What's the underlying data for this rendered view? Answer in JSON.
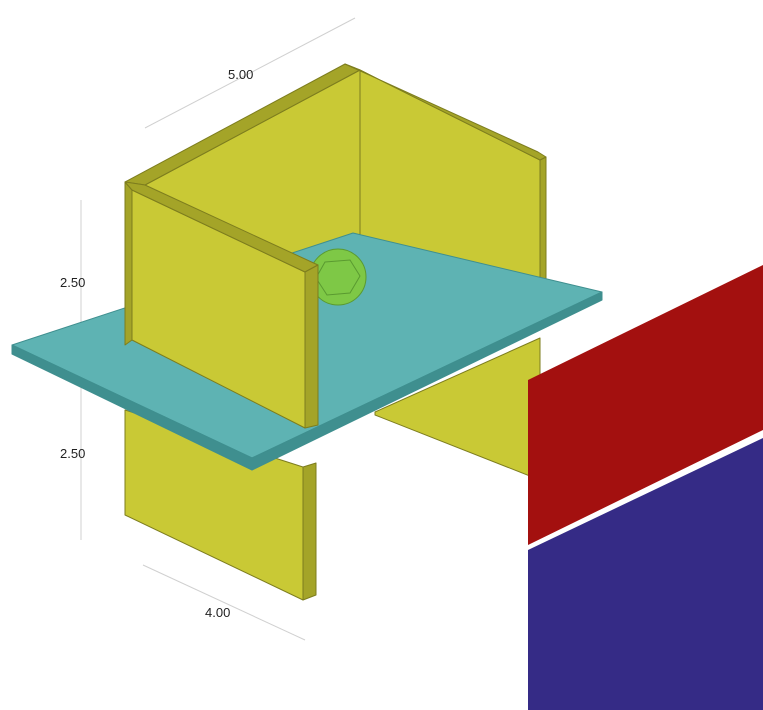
{
  "dimensions": {
    "width_label": "5.00",
    "upper_height_label": "2.50",
    "lower_height_label": "2.50",
    "depth_label": "4.00"
  },
  "colors": {
    "wall": "#c9c935",
    "wall_side": "#a4a428",
    "wall_edge": "#7d7d1e",
    "floor": "#5eb3b3",
    "floor_edge": "#3f8f8f",
    "sphere": "#7ec846",
    "panel_top": "#a3100f",
    "panel_bottom": "#352b86"
  }
}
